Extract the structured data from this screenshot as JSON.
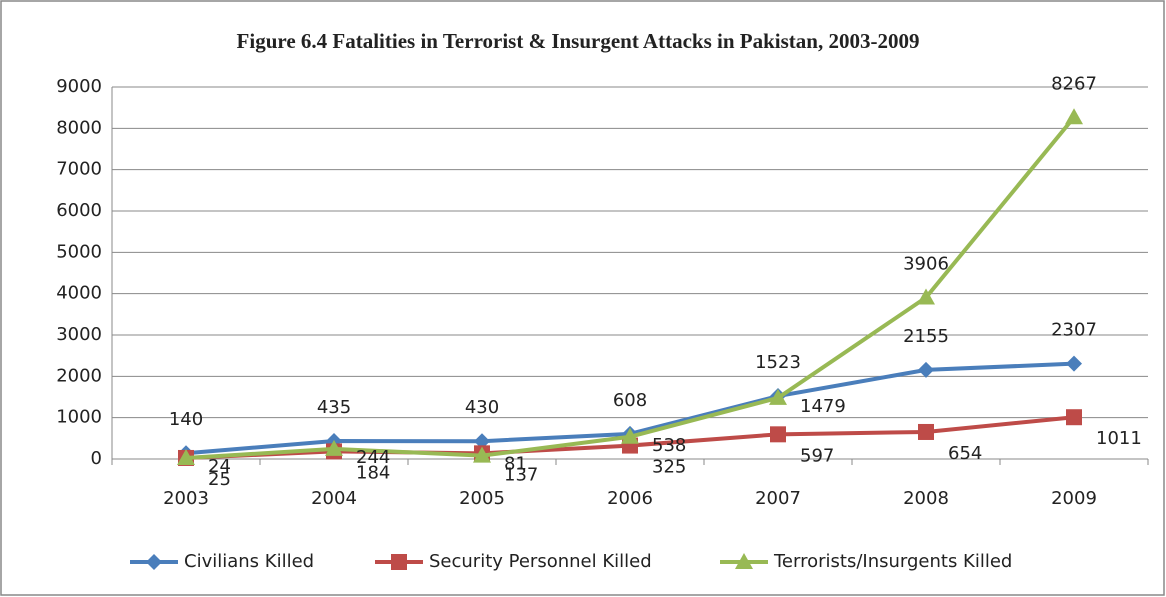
{
  "chart_data": {
    "type": "line",
    "title": "Figure 6.4 Fatalities in Terrorist & Insurgent Attacks in Pakistan, 2003-2009",
    "categories": [
      "2003",
      "2004",
      "2005",
      "2006",
      "2007",
      "2008",
      "2009"
    ],
    "series": [
      {
        "name": "Civilians Killed",
        "color": "#4a7ebb",
        "marker": "diamond",
        "values": [
          140,
          435,
          430,
          608,
          1523,
          2155,
          2307
        ]
      },
      {
        "name": "Security Personnel Killed",
        "color": "#be4b48",
        "marker": "square",
        "values": [
          25,
          184,
          137,
          325,
          597,
          654,
          1011
        ]
      },
      {
        "name": "Terrorists/Insurgents Killed",
        "color": "#98b954",
        "marker": "triangle",
        "values": [
          24,
          244,
          81,
          538,
          1479,
          3906,
          8267
        ]
      }
    ],
    "ylim": [
      0,
      9000
    ],
    "yticks": [
      0,
      1000,
      2000,
      3000,
      4000,
      5000,
      6000,
      7000,
      8000,
      9000
    ],
    "grid": true,
    "legend": "bottom"
  }
}
